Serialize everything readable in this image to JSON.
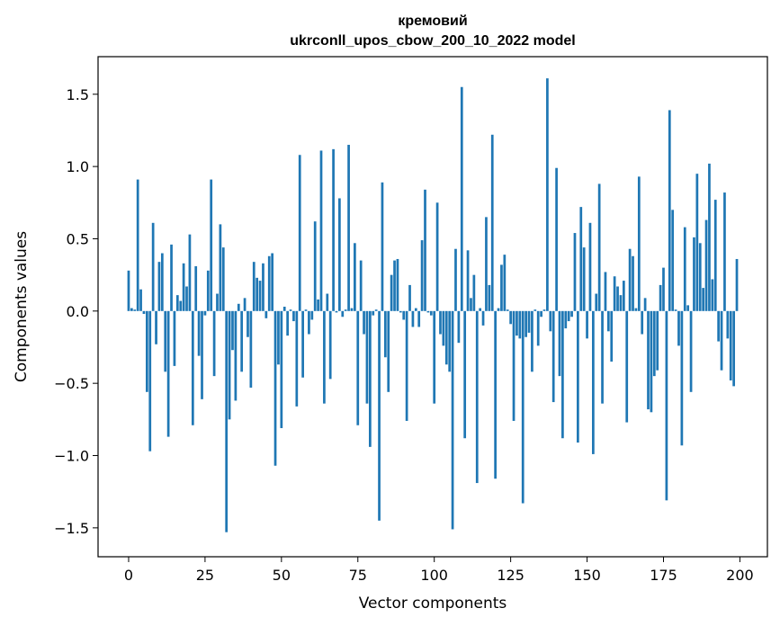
{
  "chart_data": {
    "type": "bar",
    "title": "кремовий",
    "subtitle": "ukrconll_upos_cbow_200_10_2022 model",
    "xlabel": "Vector components",
    "ylabel": "Components values",
    "xlim": [
      -10,
      209
    ],
    "ylim": [
      -1.7,
      1.76
    ],
    "xticks": [
      0,
      25,
      50,
      75,
      100,
      125,
      150,
      175,
      200
    ],
    "yticks": [
      -1.5,
      -1.0,
      -0.5,
      0.0,
      0.5,
      1.0,
      1.5
    ],
    "ytick_labels": [
      "−1.5",
      "−1.0",
      "−0.5",
      "0.0",
      "0.5",
      "1.0",
      "1.5"
    ],
    "bar_color": "#1f77b4",
    "values": [
      0.28,
      0.02,
      0.01,
      0.91,
      0.15,
      -0.02,
      -0.56,
      -0.97,
      0.61,
      -0.23,
      0.34,
      0.4,
      -0.42,
      -0.87,
      0.46,
      -0.38,
      0.11,
      0.07,
      0.33,
      0.17,
      0.53,
      -0.79,
      0.31,
      -0.31,
      -0.61,
      -0.03,
      0.28,
      0.91,
      -0.45,
      0.12,
      0.6,
      0.44,
      -1.53,
      -0.75,
      -0.27,
      -0.62,
      0.05,
      -0.42,
      0.09,
      -0.18,
      -0.53,
      0.34,
      0.23,
      0.21,
      0.33,
      -0.05,
      0.38,
      0.4,
      -1.07,
      -0.37,
      -0.81,
      0.03,
      -0.17,
      0.01,
      -0.07,
      -0.66,
      1.08,
      -0.46,
      0.01,
      -0.16,
      -0.06,
      0.62,
      0.08,
      1.11,
      -0.64,
      0.12,
      -0.47,
      1.12,
      -0.01,
      0.78,
      -0.04,
      0.01,
      1.15,
      0.02,
      0.47,
      -0.79,
      0.35,
      -0.16,
      -0.64,
      -0.94,
      -0.03,
      0.01,
      -1.45,
      0.89,
      -0.32,
      -0.56,
      0.25,
      0.35,
      0.36,
      -0.01,
      -0.06,
      -0.76,
      0.18,
      -0.11,
      0.02,
      -0.11,
      0.49,
      0.84,
      -0.01,
      -0.03,
      -0.64,
      0.75,
      -0.16,
      -0.24,
      -0.37,
      -0.42,
      -1.51,
      0.43,
      -0.22,
      1.55,
      -0.88,
      0.42,
      0.09,
      0.25,
      -1.19,
      0.02,
      -0.1,
      0.65,
      0.18,
      1.22,
      -1.16,
      0.02,
      0.32,
      0.39,
      0.01,
      -0.09,
      -0.76,
      -0.17,
      -0.19,
      -1.33,
      -0.18,
      -0.15,
      -0.42,
      0.01,
      -0.24,
      -0.04,
      0.01,
      1.61,
      -0.14,
      -0.63,
      0.99,
      -0.45,
      -0.88,
      -0.12,
      -0.07,
      -0.04,
      0.54,
      -0.91,
      0.72,
      0.44,
      -0.19,
      0.61,
      -0.99,
      0.12,
      0.88,
      -0.64,
      0.27,
      -0.14,
      -0.35,
      0.24,
      0.17,
      0.11,
      0.21,
      -0.77,
      0.43,
      0.38,
      0.02,
      0.93,
      -0.16,
      0.09,
      -0.68,
      -0.7,
      -0.45,
      -0.41,
      0.18,
      0.3,
      -1.31,
      1.39,
      0.7,
      0.01,
      -0.24,
      -0.93,
      0.58,
      0.04,
      -0.56,
      0.51,
      0.95,
      0.47,
      0.16,
      0.63,
      1.02,
      0.22,
      0.77,
      -0.21,
      -0.41,
      0.82,
      -0.19,
      -0.48,
      -0.52,
      0.36
    ]
  }
}
